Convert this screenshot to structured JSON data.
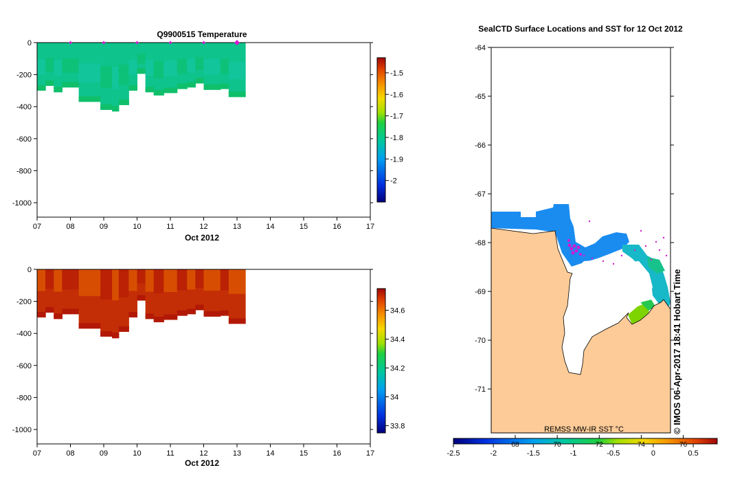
{
  "colors": {
    "temperature_cells": "#0ec38c",
    "temperature_cells_dark": "#0fbf6a",
    "temperature_cells_light": "#16c6a6",
    "salinity_cells": "#c42e06",
    "salinity_cells_orange": "#e86a00",
    "salinity_cells_dark": "#b21806",
    "land": "#fccb97",
    "ice": "#ffffff",
    "sst_blue": "#1a8cf0",
    "sst_teal": "#17b8c7",
    "markers": "#d21ad2"
  },
  "chart_data": [
    {
      "type": "heatmap",
      "title": "Q9900515  Temperature",
      "xlabel": "Oct 2012",
      "ylabel": "",
      "x_ticks": [
        "07",
        "08",
        "09",
        "10",
        "11",
        "12",
        "13",
        "14",
        "15",
        "16",
        "17"
      ],
      "x_range": [
        7,
        17
      ],
      "y_ticks": [
        "0",
        "-200",
        "-400",
        "-600",
        "-800",
        "-1000"
      ],
      "y_range": [
        -1090,
        0
      ],
      "profile_times": [
        8.0,
        9.0,
        10.0,
        11.0,
        12.0,
        13.0
      ],
      "data_x_range": [
        7.0,
        13.25
      ],
      "max_depth_segments": [
        [
          7.0,
          7.25,
          -300
        ],
        [
          7.25,
          7.5,
          -270
        ],
        [
          7.5,
          7.75,
          -310
        ],
        [
          7.75,
          8.25,
          -280
        ],
        [
          8.25,
          8.9,
          -370
        ],
        [
          8.9,
          9.25,
          -420
        ],
        [
          9.25,
          9.45,
          -430
        ],
        [
          9.45,
          9.75,
          -390
        ],
        [
          9.75,
          10.0,
          -300
        ],
        [
          10.0,
          10.25,
          -195
        ],
        [
          10.25,
          10.5,
          -310
        ],
        [
          10.5,
          10.8,
          -330
        ],
        [
          10.8,
          11.2,
          -315
        ],
        [
          11.2,
          11.5,
          -290
        ],
        [
          11.5,
          11.75,
          -280
        ],
        [
          11.75,
          12.0,
          -255
        ],
        [
          12.0,
          12.5,
          -295
        ],
        [
          12.5,
          12.75,
          -290
        ],
        [
          12.75,
          13.25,
          -340
        ]
      ],
      "colorbar": {
        "ticks": [
          "-1.5",
          "-1.6",
          "-1.7",
          "-1.8",
          "-1.9",
          "-2"
        ],
        "range": [
          -2.1,
          -1.43
        ]
      }
    },
    {
      "type": "heatmap",
      "title": "",
      "xlabel": "Oct 2012",
      "ylabel": "",
      "x_ticks": [
        "07",
        "08",
        "09",
        "10",
        "11",
        "12",
        "13",
        "14",
        "15",
        "16",
        "17"
      ],
      "x_range": [
        7,
        17
      ],
      "y_ticks": [
        "0",
        "-200",
        "-400",
        "-600",
        "-800",
        "-1000"
      ],
      "y_range": [
        -1090,
        0
      ],
      "data_x_range": [
        7.0,
        13.25
      ],
      "max_depth_segments": [
        [
          7.0,
          7.25,
          -300
        ],
        [
          7.25,
          7.5,
          -270
        ],
        [
          7.5,
          7.75,
          -310
        ],
        [
          7.75,
          8.25,
          -280
        ],
        [
          8.25,
          8.9,
          -370
        ],
        [
          8.9,
          9.25,
          -420
        ],
        [
          9.25,
          9.45,
          -430
        ],
        [
          9.45,
          9.75,
          -390
        ],
        [
          9.75,
          10.0,
          -300
        ],
        [
          10.0,
          10.25,
          -195
        ],
        [
          10.25,
          10.5,
          -310
        ],
        [
          10.5,
          10.8,
          -330
        ],
        [
          10.8,
          11.2,
          -315
        ],
        [
          11.2,
          11.5,
          -290
        ],
        [
          11.5,
          11.75,
          -280
        ],
        [
          11.75,
          12.0,
          -255
        ],
        [
          12.0,
          12.5,
          -295
        ],
        [
          12.5,
          12.75,
          -290
        ],
        [
          12.75,
          13.25,
          -340
        ]
      ],
      "colorbar": {
        "ticks": [
          "34.6",
          "34.4",
          "34.2",
          "34",
          "33.8"
        ],
        "range": [
          33.75,
          34.75
        ]
      }
    },
    {
      "type": "heatmap",
      "title": "SealCTD Surface Locations and SST for 12 Oct 2012",
      "xlabel": "",
      "ylabel": "",
      "y_ticks": [
        "-64",
        "-65",
        "-66",
        "-67",
        "-68",
        "-69",
        "-70",
        "-71"
      ],
      "y_range": [
        -71.9,
        -64
      ],
      "sst_label": "REMSS MW-IR SST °C",
      "colorbar_celsius": {
        "ticks": [
          "-2.5",
          "-2",
          "-1.5",
          "-1",
          "-0.5",
          "0",
          "0.5"
        ],
        "range": [
          -2.5,
          0.8
        ]
      },
      "colorbar_fahrenheit_ticks": [
        "68",
        "70",
        "72",
        "74",
        "76"
      ],
      "credit": "© IMOS 06-Apr-2017 18:41 Hobart Time"
    }
  ]
}
